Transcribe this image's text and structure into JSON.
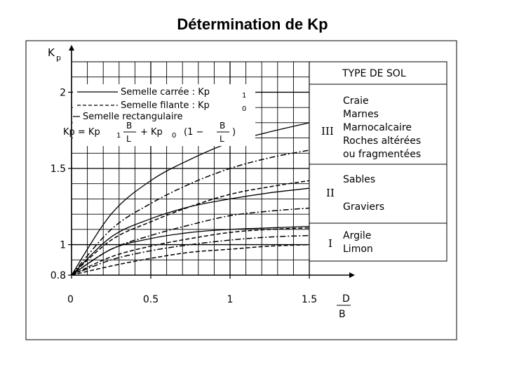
{
  "slide": {
    "title": "Détermination de Kp"
  },
  "chart_data": {
    "type": "line",
    "xlabel_num": "D",
    "xlabel_den": "B",
    "ylabel_main": "K",
    "ylabel_sub": "p",
    "xlim": [
      0,
      1.5
    ],
    "ylim": [
      0.8,
      2.2
    ],
    "x_ticks": [
      {
        "value": 0,
        "label": "0"
      },
      {
        "value": 0.5,
        "label": "0.5"
      },
      {
        "value": 1,
        "label": "1"
      },
      {
        "value": 1.5,
        "label": "1.5"
      }
    ],
    "y_ticks": [
      {
        "value": 0.8,
        "label": "0.8"
      },
      {
        "value": 1,
        "label": "1"
      },
      {
        "value": 1.5,
        "label": "1.5"
      },
      {
        "value": 2,
        "label": "2"
      }
    ],
    "grid": true,
    "legend": [
      {
        "line": "solid",
        "text": "Semelle carrée : Kp",
        "sub": "1"
      },
      {
        "line": "dashed",
        "text": "Semelle filante : Kp",
        "sub": "0"
      },
      {
        "line": "dashdot",
        "text": "Semelle rectangulaire",
        "sub": ""
      }
    ],
    "formula": {
      "lhs": "Kp = Kp",
      "s1": "1",
      "f1_num": "B",
      "f1_den": "L",
      "mid": "+ Kp",
      "s2": "0",
      "open": "(1 −",
      "f2_num": "B",
      "f2_den": "L",
      "close": ")"
    },
    "series": [
      {
        "soil": "III",
        "type": "solid",
        "x": [
          0,
          0.25,
          0.5,
          0.75,
          1,
          1.25,
          1.5
        ],
        "y": [
          0.8,
          1.2,
          1.42,
          1.56,
          1.67,
          1.74,
          1.8
        ]
      },
      {
        "soil": "III",
        "type": "dashdot",
        "x": [
          0,
          0.25,
          0.5,
          0.75,
          1,
          1.25,
          1.5
        ],
        "y": [
          0.8,
          1.1,
          1.27,
          1.4,
          1.5,
          1.57,
          1.62
        ]
      },
      {
        "soil": "III",
        "type": "dashed",
        "x": [
          0,
          0.25,
          0.5,
          0.75,
          1,
          1.25,
          1.5
        ],
        "y": [
          0.8,
          1.03,
          1.15,
          1.25,
          1.33,
          1.38,
          1.42
        ]
      },
      {
        "soil": "II",
        "type": "solid",
        "x": [
          0,
          0.25,
          0.5,
          0.75,
          1,
          1.25,
          1.5
        ],
        "y": [
          0.8,
          1.05,
          1.17,
          1.25,
          1.3,
          1.34,
          1.37
        ]
      },
      {
        "soil": "II",
        "type": "dashdot",
        "x": [
          0,
          0.25,
          0.5,
          0.75,
          1,
          1.25,
          1.5
        ],
        "y": [
          0.8,
          0.97,
          1.06,
          1.13,
          1.19,
          1.22,
          1.24
        ]
      },
      {
        "soil": "II",
        "type": "dashed",
        "x": [
          0,
          0.25,
          0.5,
          0.75,
          1,
          1.25,
          1.5
        ],
        "y": [
          0.8,
          0.92,
          0.99,
          1.04,
          1.08,
          1.1,
          1.11
        ]
      },
      {
        "soil": "I",
        "type": "solid",
        "x": [
          0,
          0.25,
          0.5,
          0.75,
          1,
          1.25,
          1.5
        ],
        "y": [
          0.8,
          0.97,
          1.04,
          1.08,
          1.1,
          1.11,
          1.12
        ]
      },
      {
        "soil": "I",
        "type": "dashdot",
        "x": [
          0,
          0.25,
          0.5,
          0.75,
          1,
          1.25,
          1.5
        ],
        "y": [
          0.8,
          0.9,
          0.96,
          1.0,
          1.03,
          1.05,
          1.06
        ]
      },
      {
        "soil": "I",
        "type": "dashed",
        "x": [
          0,
          0.25,
          0.5,
          0.75,
          1,
          1.25,
          1.5
        ],
        "y": [
          0.8,
          0.86,
          0.91,
          0.95,
          0.97,
          0.99,
          1.0
        ]
      }
    ],
    "soil_table": {
      "header": "TYPE DE SOL",
      "rows": [
        {
          "roman": "III",
          "lines": [
            "Craie",
            "Marnes",
            "Marnocalcaire",
            "Roches altérées",
            "ou fragmentées"
          ]
        },
        {
          "roman": "II",
          "lines": [
            "Sables",
            "Graviers"
          ]
        },
        {
          "roman": "I",
          "lines": [
            "Argile",
            "Limon"
          ]
        }
      ]
    }
  }
}
